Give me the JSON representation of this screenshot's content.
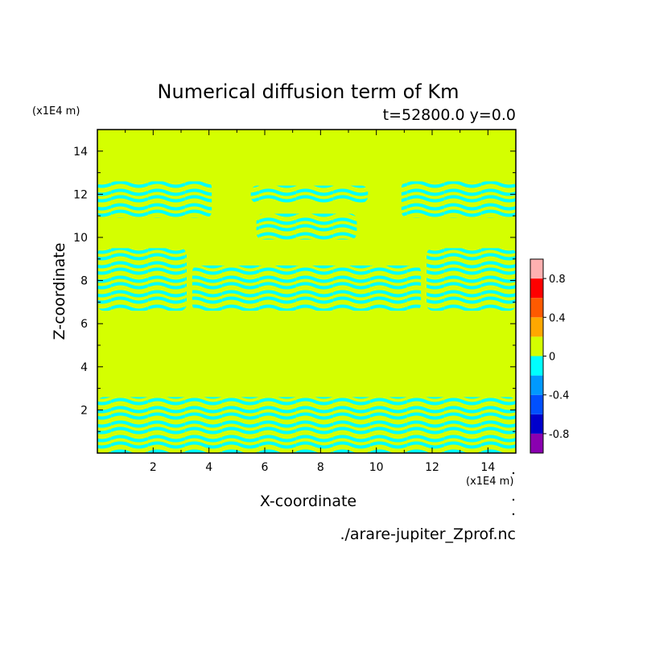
{
  "chart_data": {
    "type": "heatmap",
    "title": "Numerical diffusion term of Km",
    "subtitle": "t=52800.0 y=0.0",
    "xlabel": "X-coordinate",
    "ylabel": "Z-coordinate",
    "x_unit_label": "(x1E4 m)",
    "y_unit_label": "(x1E4 m)",
    "source_label": "./arare-jupiter_Zprof.nc",
    "xlim": [
      0.0,
      15.0
    ],
    "ylim": [
      0.0,
      15.0
    ],
    "x_ticks": [
      "2",
      "4",
      "6",
      "8",
      "10",
      "12",
      "14"
    ],
    "y_ticks": [
      "2",
      "4",
      "6",
      "8",
      "10",
      "12",
      "14"
    ],
    "background_level": 0.1,
    "colorbar": {
      "levels": [
        -1.0,
        -0.8,
        -0.6,
        -0.4,
        -0.2,
        0.0,
        0.2,
        0.4,
        0.6,
        0.8,
        1.0
      ],
      "colors": [
        "#8a00b0",
        "#0000cc",
        "#0050ff",
        "#0099ff",
        "#00ffff",
        "#d4ff00",
        "#ffa800",
        "#ff5a00",
        "#ff0000",
        "#ffb0b0"
      ],
      "tick_labels": [
        "-0.8",
        "-0.4",
        "0",
        "0.4",
        "0.8"
      ]
    },
    "regions": [
      {
        "value": -0.1,
        "desc": "top-left wavy bands",
        "x": [
          0.0,
          4.1
        ],
        "z": [
          10.9,
          12.6
        ]
      },
      {
        "value": -0.1,
        "desc": "top-right wavy bands",
        "x": [
          10.9,
          15.0
        ],
        "z": [
          10.9,
          12.6
        ]
      },
      {
        "value": -0.1,
        "desc": "upper-center arc",
        "x": [
          5.7,
          9.3
        ],
        "z": [
          9.9,
          11.1
        ]
      },
      {
        "value": -0.1,
        "desc": "small diamonds",
        "x": [
          5.5,
          9.7
        ],
        "z": [
          11.6,
          12.4
        ]
      },
      {
        "value": -0.1,
        "desc": "middle-left bands",
        "x": [
          0.0,
          3.2
        ],
        "z": [
          6.6,
          9.5
        ]
      },
      {
        "value": -0.1,
        "desc": "middle-right bands",
        "x": [
          11.8,
          15.0
        ],
        "z": [
          6.6,
          9.5
        ]
      },
      {
        "value": -0.1,
        "desc": "middle ovals",
        "x": [
          3.4,
          11.6
        ],
        "z": [
          6.6,
          8.7
        ]
      },
      {
        "value": -0.1,
        "desc": "bottom boundary layer",
        "x": [
          0.0,
          15.0
        ],
        "z": [
          0.0,
          2.6
        ]
      }
    ]
  }
}
